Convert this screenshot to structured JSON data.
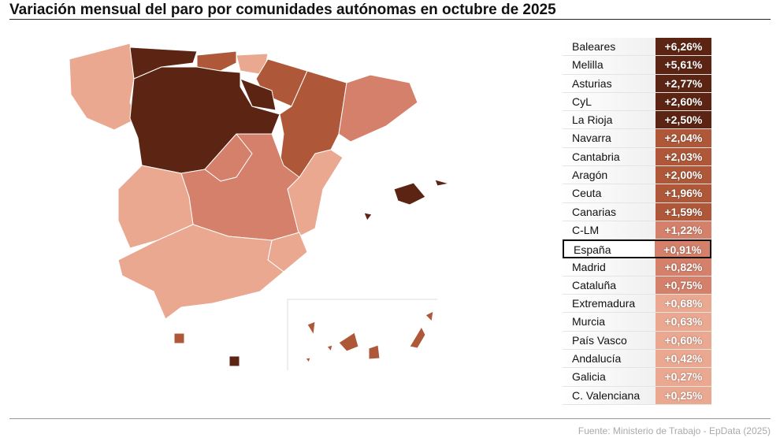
{
  "title": "Variación mensual del paro por comunidades autónomas en octubre de 2025",
  "source": "Fuente: Ministerio de Trabajo - EpData (2025)",
  "colors": {
    "c1": "#5c2413",
    "c2": "#ae5839",
    "c3": "#d4806a",
    "c4": "#eaa891"
  },
  "rows": [
    {
      "name": "Baleares",
      "value": "+6,26%",
      "c": "c1"
    },
    {
      "name": "Melilla",
      "value": "+5,61%",
      "c": "c1"
    },
    {
      "name": "Asturias",
      "value": "+2,77%",
      "c": "c1"
    },
    {
      "name": "CyL",
      "value": "+2,60%",
      "c": "c1"
    },
    {
      "name": "La Rioja",
      "value": "+2,50%",
      "c": "c1"
    },
    {
      "name": "Navarra",
      "value": "+2,04%",
      "c": "c2"
    },
    {
      "name": "Cantabria",
      "value": "+2,03%",
      "c": "c2"
    },
    {
      "name": "Aragón",
      "value": "+2,00%",
      "c": "c2"
    },
    {
      "name": "Ceuta",
      "value": "+1,96%",
      "c": "c2"
    },
    {
      "name": "Canarias",
      "value": "+1,59%",
      "c": "c2"
    },
    {
      "name": "C-LM",
      "value": "+1,22%",
      "c": "c3"
    },
    {
      "name": "España",
      "value": "+0,91%",
      "c": "c3",
      "highlight": true
    },
    {
      "name": "Madrid",
      "value": "+0,82%",
      "c": "c3"
    },
    {
      "name": "Cataluña",
      "value": "+0,75%",
      "c": "c3"
    },
    {
      "name": "Extremadura",
      "value": "+0,68%",
      "c": "c4"
    },
    {
      "name": "Murcia",
      "value": "+0,63%",
      "c": "c4"
    },
    {
      "name": "País Vasco",
      "value": "+0,60%",
      "c": "c4"
    },
    {
      "name": "Andalucía",
      "value": "+0,42%",
      "c": "c4"
    },
    {
      "name": "Galicia",
      "value": "+0,27%",
      "c": "c4"
    },
    {
      "name": "C. Valenciana",
      "value": "+0,25%",
      "c": "c4"
    }
  ],
  "map_regions": {
    "Galicia": "c4",
    "Asturias": "c1",
    "Cantabria": "c2",
    "País Vasco": "c4",
    "Navarra": "c2",
    "La Rioja": "c1",
    "CyL": "c1",
    "Aragón": "c2",
    "Cataluña": "c3",
    "Madrid": "c3",
    "C-LM": "c3",
    "Extremadura": "c4",
    "C. Valenciana": "c4",
    "Murcia": "c4",
    "Andalucía": "c4",
    "Baleares": "c1",
    "Canarias": "c2",
    "Ceuta": "c2",
    "Melilla": "c1"
  }
}
